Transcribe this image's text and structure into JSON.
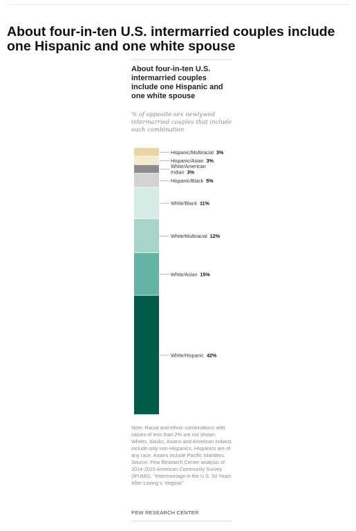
{
  "headline": "About four-in-ten U.S. intermarried couples include one Hispanic and one white spouse",
  "chart_data": {
    "type": "bar",
    "stacked": true,
    "orientation": "vertical",
    "title": "About four-in-ten U.S. intermarried couples include one Hispanic and one white spouse",
    "subtitle": "% of opposite-sex newlywed intermarried couples that include each combination",
    "segments": [
      {
        "name": "Hispanic/Multiracial",
        "value": 3,
        "label": "3%",
        "color": "#e8d5a3"
      },
      {
        "name": "Hispanic/Asian",
        "value": 3,
        "label": "3%",
        "color": "#f4ead0"
      },
      {
        "name": "White/American Indian",
        "lines": [
          "White/American",
          "Indian"
        ],
        "value": 3,
        "label": "3%",
        "color": "#8c8c8c"
      },
      {
        "name": "Hispanic/Black",
        "value": 5,
        "label": "5%",
        "color": "#d3d3d3"
      },
      {
        "name": "White/Black",
        "value": 11,
        "label": "11%",
        "color": "#d6ebe6"
      },
      {
        "name": "White/Multiracial",
        "value": 12,
        "label": "12%",
        "color": "#a6d4c9"
      },
      {
        "name": "White/Asian",
        "value": 15,
        "label": "15%",
        "color": "#64b3a7"
      },
      {
        "name": "White/Hispanic",
        "value": 42,
        "label": "42%",
        "color": "#005c4a"
      }
    ]
  },
  "note": "Note: Racial and ethnic combinations with values of less than 2% are not shown. Whites, blacks, Asians and American Indians include only non-Hispanics. Hispanics are of any race. Asians include Pacific Islanders. Source: Pew Research Center analysis of 2014-2015 American Community Survey (IPUMS). \"Intermarriage in the U.S. 50 Years After Loving v. Virginia\"",
  "source_name": "PEW RESEARCH CENTER"
}
